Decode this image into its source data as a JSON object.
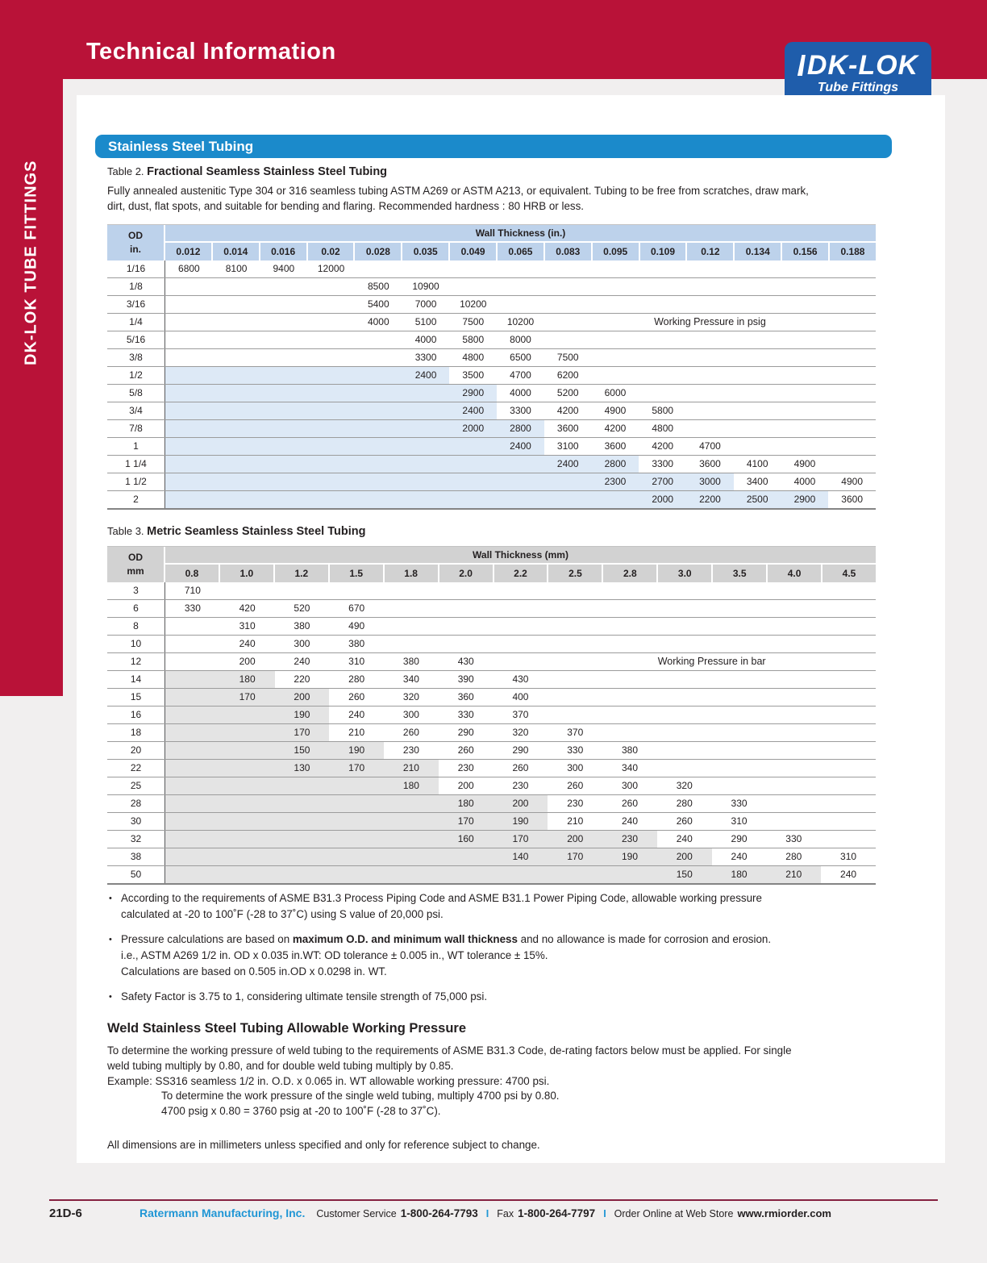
{
  "colors": {
    "red": "#b91238",
    "banner_blue": "#1b8acb",
    "logo_blue": "#1f5dab",
    "table2_header": "#bdd2eb",
    "table2_shade": "#dde9f6",
    "table3_header": "#d2d2d2",
    "table3_shade": "#e4e4e4",
    "maroon": "#85203f",
    "footer_blue": "#2096d5"
  },
  "header": {
    "title": "Technical Information"
  },
  "logo": {
    "brand": "DK-LOK",
    "tagline": "Tube Fittings"
  },
  "sidebar_text": "DK-LOK TUBE FITTINGS",
  "section_banner": "Stainless Steel Tubing",
  "table2": {
    "label_prefix": "Table 2. ",
    "title": "Fractional Seamless Stainless Steel Tubing",
    "intro_lines": [
      "Fully annealed austenitic Type 304 or 316 seamless tubing ASTM A269 or ASTM A213, or equivalent. Tubing to be free from scratches, draw mark,",
      "dirt, dust, flat spots, and suitable for bending and flaring. Recommended hardness : 80 HRB or less."
    ],
    "od_header": [
      "OD",
      "in."
    ],
    "wall_header": "Wall Thickness (in.)",
    "columns": [
      "0.012",
      "0.014",
      "0.016",
      "0.02",
      "0.028",
      "0.035",
      "0.049",
      "0.065",
      "0.083",
      "0.095",
      "0.109",
      "0.12",
      "0.134",
      "0.156",
      "0.188"
    ],
    "annotation": {
      "row": 3,
      "text": "Working Pressure in psig",
      "from": 9,
      "to": 13
    },
    "rows": [
      {
        "od": "1/16",
        "shade_to": -1,
        "values": [
          "6800",
          "8100",
          "9400",
          "12000",
          "",
          "",
          "",
          "",
          "",
          "",
          "",
          "",
          "",
          "",
          ""
        ]
      },
      {
        "od": "1/8",
        "shade_to": -1,
        "values": [
          "",
          "",
          "",
          "",
          "8500",
          "10900",
          "",
          "",
          "",
          "",
          "",
          "",
          "",
          "",
          ""
        ]
      },
      {
        "od": "3/16",
        "shade_to": -1,
        "values": [
          "",
          "",
          "",
          "",
          "5400",
          "7000",
          "10200",
          "",
          "",
          "",
          "",
          "",
          "",
          "",
          ""
        ]
      },
      {
        "od": "1/4",
        "shade_to": -1,
        "values": [
          "",
          "",
          "",
          "",
          "4000",
          "5100",
          "7500",
          "10200",
          "",
          "",
          "",
          "",
          "",
          "",
          ""
        ]
      },
      {
        "od": "5/16",
        "shade_to": -1,
        "values": [
          "",
          "",
          "",
          "",
          "",
          "4000",
          "5800",
          "8000",
          "",
          "",
          "",
          "",
          "",
          "",
          ""
        ]
      },
      {
        "od": "3/8",
        "shade_to": -1,
        "values": [
          "",
          "",
          "",
          "",
          "",
          "3300",
          "4800",
          "6500",
          "7500",
          "",
          "",
          "",
          "",
          "",
          ""
        ]
      },
      {
        "od": "1/2",
        "shade_to": 5,
        "values": [
          "",
          "",
          "",
          "",
          "",
          "2400",
          "3500",
          "4700",
          "6200",
          "",
          "",
          "",
          "",
          "",
          ""
        ]
      },
      {
        "od": "5/8",
        "shade_to": 6,
        "values": [
          "",
          "",
          "",
          "",
          "",
          "",
          "2900",
          "4000",
          "5200",
          "6000",
          "",
          "",
          "",
          "",
          ""
        ]
      },
      {
        "od": "3/4",
        "shade_to": 6,
        "values": [
          "",
          "",
          "",
          "",
          "",
          "",
          "2400",
          "3300",
          "4200",
          "4900",
          "5800",
          "",
          "",
          "",
          ""
        ]
      },
      {
        "od": "7/8",
        "shade_to": 7,
        "values": [
          "",
          "",
          "",
          "",
          "",
          "",
          "2000",
          "2800",
          "3600",
          "4200",
          "4800",
          "",
          "",
          "",
          ""
        ]
      },
      {
        "od": "1",
        "shade_to": 7,
        "values": [
          "",
          "",
          "",
          "",
          "",
          "",
          "",
          "2400",
          "3100",
          "3600",
          "4200",
          "4700",
          "",
          "",
          ""
        ]
      },
      {
        "od": "1 1/4",
        "shade_to": 9,
        "values": [
          "",
          "",
          "",
          "",
          "",
          "",
          "",
          "",
          "2400",
          "2800",
          "3300",
          "3600",
          "4100",
          "4900",
          ""
        ]
      },
      {
        "od": "1 1/2",
        "shade_to": 11,
        "values": [
          "",
          "",
          "",
          "",
          "",
          "",
          "",
          "",
          "",
          "2300",
          "2700",
          "3000",
          "3400",
          "4000",
          "4900"
        ]
      },
      {
        "od": "2",
        "shade_to": 13,
        "values": [
          "",
          "",
          "",
          "",
          "",
          "",
          "",
          "",
          "",
          "",
          "2000",
          "2200",
          "2500",
          "2900",
          "3600"
        ]
      }
    ]
  },
  "table3": {
    "label_prefix": "Table 3. ",
    "title": "Metric Seamless Stainless Steel Tubing",
    "od_header": [
      "OD",
      "mm"
    ],
    "wall_header": "Wall Thickness (mm)",
    "columns": [
      "0.8",
      "1.0",
      "1.2",
      "1.5",
      "1.8",
      "2.0",
      "2.2",
      "2.5",
      "2.8",
      "3.0",
      "3.5",
      "4.0",
      "4.5"
    ],
    "annotation": {
      "row": 4,
      "text": "Working Pressure in bar",
      "from": 8,
      "to": 11
    },
    "rows": [
      {
        "od": "3",
        "shade_to": -1,
        "values": [
          "710",
          "",
          "",
          "",
          "",
          "",
          "",
          "",
          "",
          "",
          "",
          "",
          ""
        ]
      },
      {
        "od": "6",
        "shade_to": -1,
        "values": [
          "330",
          "420",
          "520",
          "670",
          "",
          "",
          "",
          "",
          "",
          "",
          "",
          "",
          ""
        ]
      },
      {
        "od": "8",
        "shade_to": -1,
        "values": [
          "",
          "310",
          "380",
          "490",
          "",
          "",
          "",
          "",
          "",
          "",
          "",
          "",
          ""
        ]
      },
      {
        "od": "10",
        "shade_to": -1,
        "values": [
          "",
          "240",
          "300",
          "380",
          "",
          "",
          "",
          "",
          "",
          "",
          "",
          "",
          ""
        ]
      },
      {
        "od": "12",
        "shade_to": -1,
        "values": [
          "",
          "200",
          "240",
          "310",
          "380",
          "430",
          "",
          "",
          "",
          "",
          "",
          "",
          ""
        ]
      },
      {
        "od": "14",
        "shade_to": 1,
        "values": [
          "",
          "180",
          "220",
          "280",
          "340",
          "390",
          "430",
          "",
          "",
          "",
          "",
          "",
          ""
        ]
      },
      {
        "od": "15",
        "shade_to": 2,
        "values": [
          "",
          "170",
          "200",
          "260",
          "320",
          "360",
          "400",
          "",
          "",
          "",
          "",
          "",
          ""
        ]
      },
      {
        "od": "16",
        "shade_to": 2,
        "values": [
          "",
          "",
          "190",
          "240",
          "300",
          "330",
          "370",
          "",
          "",
          "",
          "",
          "",
          ""
        ]
      },
      {
        "od": "18",
        "shade_to": 2,
        "values": [
          "",
          "",
          "170",
          "210",
          "260",
          "290",
          "320",
          "370",
          "",
          "",
          "",
          "",
          ""
        ]
      },
      {
        "od": "20",
        "shade_to": 3,
        "values": [
          "",
          "",
          "150",
          "190",
          "230",
          "260",
          "290",
          "330",
          "380",
          "",
          "",
          "",
          ""
        ]
      },
      {
        "od": "22",
        "shade_to": 4,
        "values": [
          "",
          "",
          "130",
          "170",
          "210",
          "230",
          "260",
          "300",
          "340",
          "",
          "",
          "",
          ""
        ]
      },
      {
        "od": "25",
        "shade_to": 4,
        "values": [
          "",
          "",
          "",
          "",
          "180",
          "200",
          "230",
          "260",
          "300",
          "320",
          "",
          "",
          ""
        ]
      },
      {
        "od": "28",
        "shade_to": 6,
        "values": [
          "",
          "",
          "",
          "",
          "",
          "180",
          "200",
          "230",
          "260",
          "280",
          "330",
          "",
          ""
        ]
      },
      {
        "od": "30",
        "shade_to": 6,
        "values": [
          "",
          "",
          "",
          "",
          "",
          "170",
          "190",
          "210",
          "240",
          "260",
          "310",
          "",
          ""
        ]
      },
      {
        "od": "32",
        "shade_to": 8,
        "values": [
          "",
          "",
          "",
          "",
          "",
          "160",
          "170",
          "200",
          "230",
          "240",
          "290",
          "330",
          ""
        ]
      },
      {
        "od": "38",
        "shade_to": 9,
        "values": [
          "",
          "",
          "",
          "",
          "",
          "",
          "140",
          "170",
          "190",
          "200",
          "240",
          "280",
          "310"
        ]
      },
      {
        "od": "50",
        "shade_to": 11,
        "values": [
          "",
          "",
          "",
          "",
          "",
          "",
          "",
          "",
          "",
          "150",
          "180",
          "210",
          "240"
        ]
      }
    ]
  },
  "notes": [
    {
      "lines": [
        [
          {
            "t": "According to the requirements of ASME B31.3 Process Piping Code and ASME B31.1 Power Piping Code, allowable working pressure",
            "b": false
          }
        ],
        [
          {
            "t": "calculated at -20 to 100˚F  (-28 to 37˚C) using S value of 20,000 psi.",
            "b": false
          }
        ]
      ]
    },
    {
      "lines": [
        [
          {
            "t": "Pressure calculations are based on ",
            "b": false
          },
          {
            "t": "maximum O.D. and minimum wall thickness",
            "b": true
          },
          {
            "t": "  and no allowance is made for corrosion and erosion.",
            "b": false
          }
        ],
        [
          {
            "t": "i.e., ASTM A269 1/2 in. OD x 0.035 in.WT: OD tolerance ± 0.005 in., WT tolerance ± 15%.",
            "b": false
          }
        ],
        [
          {
            "t": "Calculations are based on 0.505 in.OD x 0.0298 in. WT.",
            "b": false
          }
        ]
      ]
    },
    {
      "lines": [
        [
          {
            "t": "Safety Factor is 3.75 to 1, considering ultimate tensile strength of 75,000 psi.",
            "b": false
          }
        ]
      ]
    }
  ],
  "weld": {
    "title": "Weld Stainless Steel Tubing Allowable Working Pressure",
    "lines": [
      {
        "t": "To determine the working pressure of weld tubing to the requirements of ASME B31.3 Code, de-rating factors below must be applied.  For single",
        "ind": false
      },
      {
        "t": "weld tubing multiply by 0.80, and for double weld tubing multiply by 0.85.",
        "ind": false
      },
      {
        "t": "Example: SS316 seamless 1/2 in. O.D. x 0.065 in. WT allowable working pressure: 4700 psi.",
        "ind": false
      },
      {
        "t": "To determine the work pressure of the single weld tubing, multiply 4700 psi by 0.80.",
        "ind": true
      },
      {
        "t": "4700 psig x 0.80 = 3760 psig at -20 to 100˚F  (-28 to 37˚C).",
        "ind": true
      }
    ]
  },
  "dimensions_note": "All dimensions are in millimeters unless specified and only for reference subject to change.",
  "footer": {
    "page_number": "21D-6",
    "company": "Ratermann Manufacturing, Inc.",
    "cs_label": "Customer Service",
    "cs_phone": "1-800-264-7793",
    "separator": "I",
    "fax_label": "Fax",
    "fax_phone": "1-800-264-7797",
    "order_label": "Order Online at Web Store",
    "website": "www.rmiorder.com"
  }
}
